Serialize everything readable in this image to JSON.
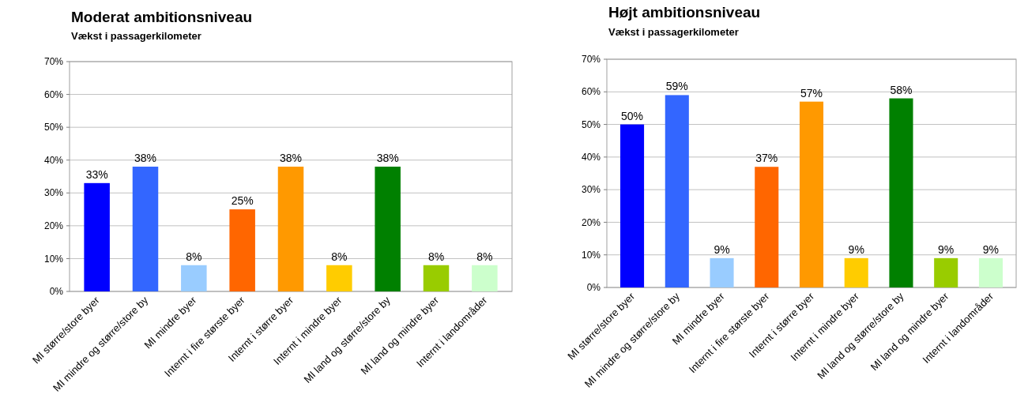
{
  "chart_data": [
    {
      "type": "bar",
      "title": "Moderat ambitionsniveau",
      "subtitle": "Vækst i passagerkilometer",
      "categories": [
        "MI større/store byer",
        "MI mindre og større/store by",
        "MI mindre byer",
        "Internt i fire største byer",
        "Internt i større byer",
        "Internt i mindre byer",
        "MI land og større/store by",
        "MI land og mindre byer",
        "Internt i landområder"
      ],
      "values": [
        33,
        38,
        8,
        25,
        38,
        8,
        38,
        8,
        8
      ],
      "value_labels": [
        "33%",
        "38%",
        "8%",
        "25%",
        "38%",
        "8%",
        "38%",
        "8%",
        "8%"
      ],
      "colors": [
        "#0000ff",
        "#3366ff",
        "#99ccff",
        "#ff6600",
        "#ff9900",
        "#ffcc00",
        "#008000",
        "#99cc00",
        "#ccffcc"
      ],
      "ylim": [
        0,
        70
      ],
      "yticks": [
        {
          "value": 0,
          "label": "0%"
        },
        {
          "value": 10,
          "label": "10%"
        },
        {
          "value": 20,
          "label": "20%"
        },
        {
          "value": 30,
          "label": "30%"
        },
        {
          "value": 40,
          "label": "40%"
        },
        {
          "value": 50,
          "label": "50%"
        },
        {
          "value": 60,
          "label": "60%"
        },
        {
          "value": 70,
          "label": "70%"
        }
      ],
      "grid": "y"
    },
    {
      "type": "bar",
      "title": "Højt ambitionsniveau",
      "subtitle": "Vækst i passagerkilometer",
      "categories": [
        "MI større/store byer",
        "MI mindre og større/store by",
        "MI mindre byer",
        "Internt i fire største byer",
        "Internt i større byer",
        "Internt i mindre byer",
        "MI land og større/store by",
        "MI land og mindre byer",
        "Internt i landområder"
      ],
      "values": [
        50,
        59,
        9,
        37,
        57,
        9,
        58,
        9,
        9
      ],
      "value_labels": [
        "50%",
        "59%",
        "9%",
        "37%",
        "57%",
        "9%",
        "58%",
        "9%",
        "9%"
      ],
      "colors": [
        "#0000ff",
        "#3366ff",
        "#99ccff",
        "#ff6600",
        "#ff9900",
        "#ffcc00",
        "#008000",
        "#99cc00",
        "#ccffcc"
      ],
      "ylim": [
        0,
        70
      ],
      "yticks": [
        {
          "value": 0,
          "label": "0%"
        },
        {
          "value": 10,
          "label": "10%"
        },
        {
          "value": 20,
          "label": "20%"
        },
        {
          "value": 30,
          "label": "30%"
        },
        {
          "value": 40,
          "label": "40%"
        },
        {
          "value": 50,
          "label": "50%"
        },
        {
          "value": 60,
          "label": "60%"
        },
        {
          "value": 70,
          "label": "70%"
        }
      ],
      "grid": "y"
    }
  ]
}
